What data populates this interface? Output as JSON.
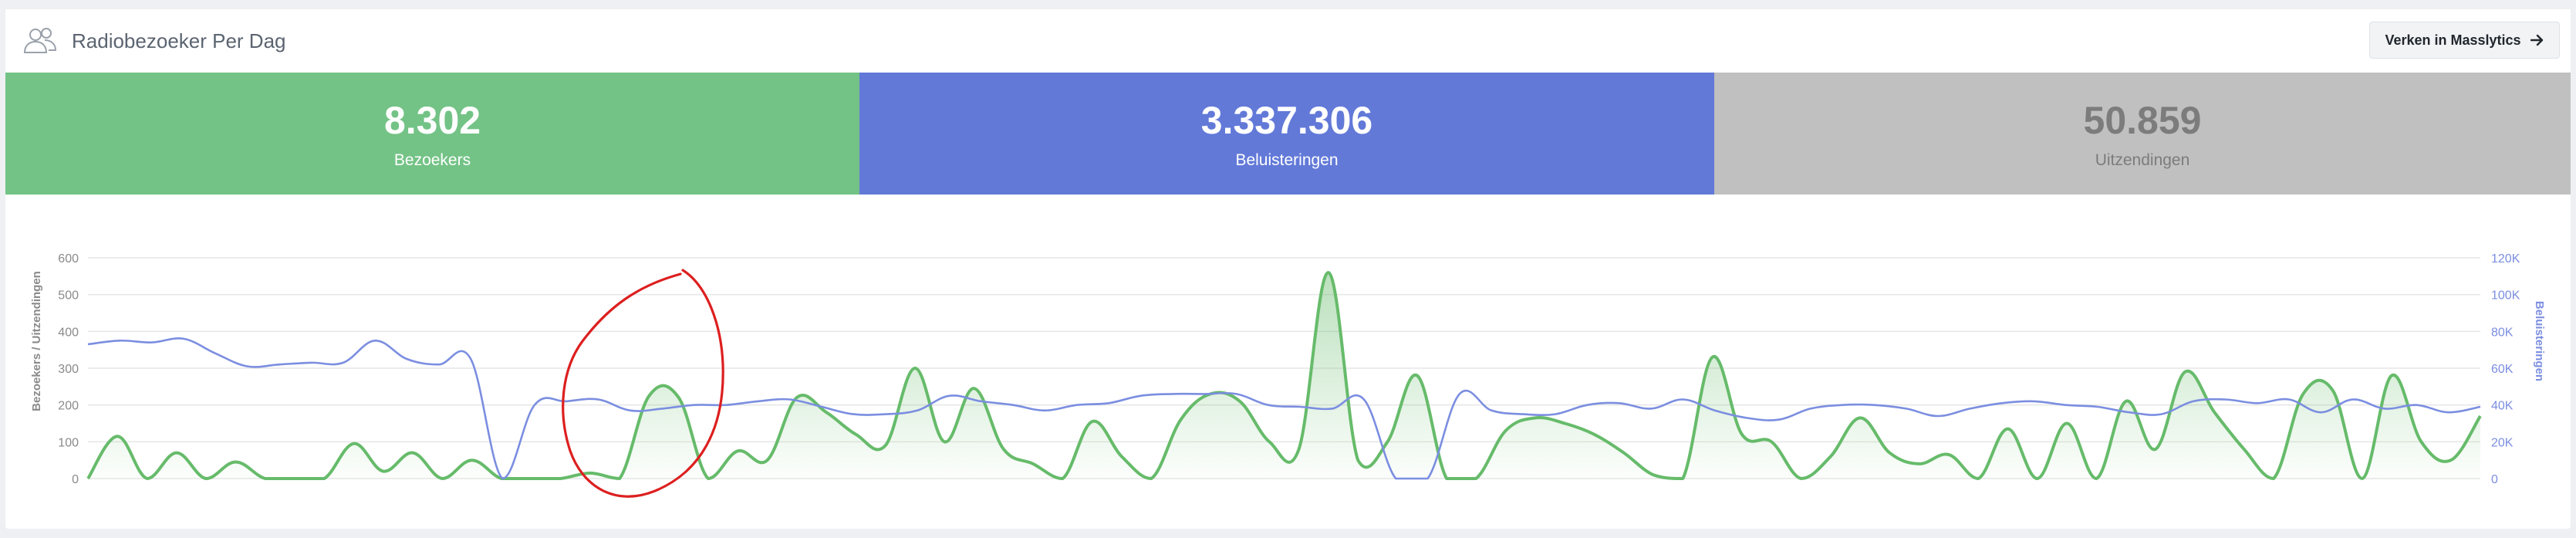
{
  "header": {
    "title": "Radiobezoeker Per Dag",
    "explore_label": "Verken in Masslytics",
    "arrow_icon": "arrow-right-icon",
    "users_icon": "users-icon"
  },
  "stats": [
    {
      "value": "8.302",
      "label": "Bezoekers",
      "color": "#73c386"
    },
    {
      "value": "3.337.306",
      "label": "Beluisteringen",
      "color": "#6279d8"
    },
    {
      "value": "50.859",
      "label": "Uitzendingen",
      "color": "#c0c0c0"
    }
  ],
  "chart_data": {
    "type": "line",
    "y_left_label": "Bezoekers / Uitzendingen",
    "y_right_label": "Beluisteringen",
    "y_left_ticks": [
      "0",
      "100",
      "200",
      "300",
      "400",
      "500",
      "600"
    ],
    "y_right_ticks": [
      "0",
      "20K",
      "40K",
      "60K",
      "80K",
      "100K",
      "120K"
    ],
    "ylim_left": [
      0,
      600
    ],
    "ylim_right": [
      0,
      120000
    ],
    "grid": true,
    "series": [
      {
        "color": "#66bb6a",
        "axis": "left",
        "fill": true,
        "values": [
          0,
          115,
          0,
          70,
          0,
          45,
          0,
          0,
          0,
          95,
          20,
          70,
          0,
          50,
          0,
          0,
          0,
          15,
          0,
          225,
          220,
          0,
          75,
          50,
          220,
          180,
          120,
          90,
          300,
          100,
          245,
          80,
          40,
          0,
          155,
          60,
          0,
          160,
          230,
          210,
          100,
          80,
          560,
          50,
          100,
          280,
          0,
          0,
          130,
          165,
          150,
          120,
          70,
          10,
          0,
          330,
          120,
          100,
          0,
          60,
          165,
          70,
          40,
          65,
          0,
          135,
          0,
          150,
          0,
          210,
          80,
          290,
          180,
          80,
          0,
          230,
          240,
          0,
          280,
          100,
          50,
          170
        ]
      },
      {
        "color": "#7b8ee0",
        "axis": "right",
        "values": [
          73000,
          75000,
          74000,
          76000,
          68000,
          61000,
          62000,
          63000,
          63000,
          75000,
          65000,
          62000,
          65000,
          0,
          40000,
          42000,
          43000,
          37000,
          38000,
          40000,
          40000,
          42000,
          43000,
          39000,
          35000,
          35000,
          37000,
          45000,
          42000,
          40000,
          37000,
          40000,
          41000,
          45000,
          46000,
          46000,
          46000,
          40000,
          39000,
          38000,
          43000,
          0,
          0,
          46000,
          37000,
          35000,
          35000,
          40000,
          41000,
          38000,
          43000,
          37000,
          33000,
          32000,
          38000,
          40000,
          40000,
          38000,
          34000,
          38000,
          41000,
          42000,
          40000,
          39000,
          36000,
          35000,
          42000,
          43000,
          41000,
          43000,
          36000,
          43000,
          38000,
          40000,
          36000,
          39000
        ]
      }
    ]
  },
  "annotation": {
    "color": "#dd1f1f",
    "shape": "hand-drawn circle"
  }
}
